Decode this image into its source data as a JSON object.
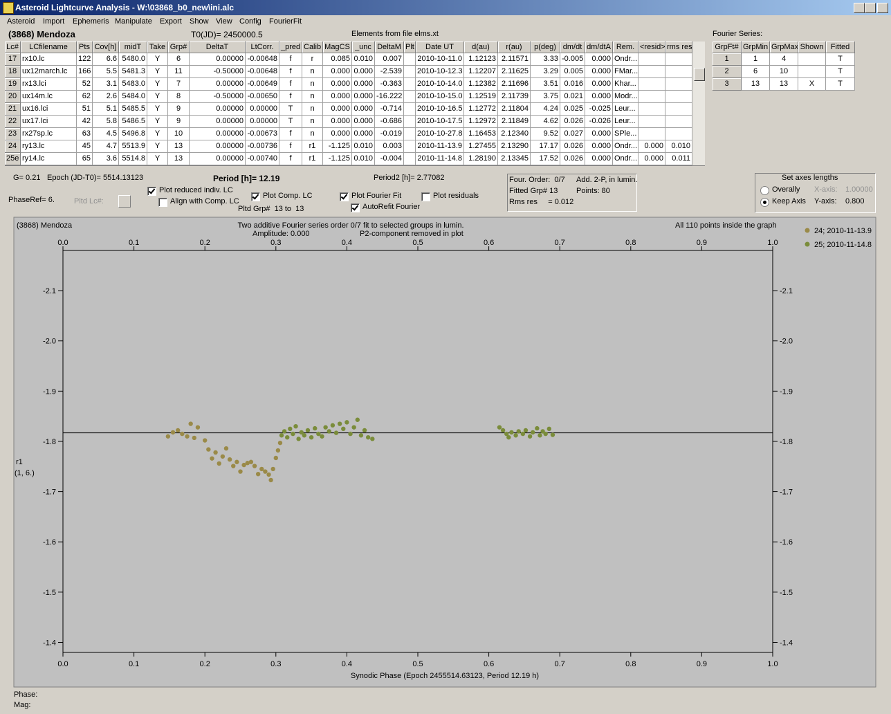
{
  "window": {
    "title": "Asteroid Lightcurve Analysis - W:\\03868_b0_new\\ini.alc",
    "menu": [
      "Asteroid",
      "Import",
      "Ephemeris",
      "Manipulate",
      "Export",
      "Show",
      "View",
      "Config",
      "FourierFit"
    ]
  },
  "header": {
    "object": "(3868) Mendoza",
    "t0": "T0(JD)= 2450000.5",
    "elements": "Elements from file elms.xt",
    "fourier_label": "Fourier Series:"
  },
  "lc_table": {
    "columns": [
      "Lc#",
      "LCfilename",
      "Pts",
      "Cov[h]",
      "midT",
      "Take",
      "Grp#",
      "DeltaT",
      "LtCorr.",
      "_pred",
      "Calib",
      "MagCS",
      "_unc",
      "DeltaM",
      "Plt",
      "Date UT",
      "d(au)",
      "r(au)",
      "p(deg)",
      "dm/dt",
      "dm/dtA",
      "Rem.",
      "<resid>",
      "rms res"
    ],
    "rows": [
      [
        "17",
        "rx10.lc",
        "122",
        "6.6",
        "5480.0",
        "Y",
        "6",
        "0.00000",
        "-0.00648",
        "f",
        "r",
        "0.085",
        "0.010",
        "0.007",
        null,
        "2010-10-11.0",
        "1.12123",
        "2.11571",
        "3.33",
        "-0.005",
        "0.000",
        "Ondr...",
        null,
        null
      ],
      [
        "18",
        "ux12march.lc",
        "166",
        "5.5",
        "5481.3",
        "Y",
        "11",
        "-0.50000",
        "-0.00648",
        "f",
        "n",
        "0.000",
        "0.000",
        "-2.539",
        null,
        "2010-10-12.3",
        "1.12207",
        "2.11625",
        "3.29",
        "0.005",
        "0.000",
        "FMar...",
        null,
        null
      ],
      [
        "19",
        "rx13.lci",
        "52",
        "3.1",
        "5483.0",
        "Y",
        "7",
        "0.00000",
        "-0.00649",
        "f",
        "n",
        "0.000",
        "0.000",
        "-0.363",
        null,
        "2010-10-14.0",
        "1.12382",
        "2.11696",
        "3.51",
        "0.016",
        "0.000",
        "Khar...",
        null,
        null
      ],
      [
        "20",
        "ux14m.lc",
        "62",
        "2.6",
        "5484.0",
        "Y",
        "8",
        "-0.50000",
        "-0.00650",
        "f",
        "n",
        "0.000",
        "0.000",
        "-16.222",
        null,
        "2010-10-15.0",
        "1.12519",
        "2.11739",
        "3.75",
        "0.021",
        "0.000",
        "Modr...",
        null,
        null
      ],
      [
        "21",
        "ux16.lci",
        "51",
        "5.1",
        "5485.5",
        "Y",
        "9",
        "0.00000",
        "0.00000",
        "T",
        "n",
        "0.000",
        "0.000",
        "-0.714",
        null,
        "2010-10-16.5",
        "1.12772",
        "2.11804",
        "4.24",
        "0.025",
        "-0.025",
        "Leur...",
        null,
        null
      ],
      [
        "22",
        "ux17.lci",
        "42",
        "5.8",
        "5486.5",
        "Y",
        "9",
        "0.00000",
        "0.00000",
        "T",
        "n",
        "0.000",
        "0.000",
        "-0.686",
        null,
        "2010-10-17.5",
        "1.12972",
        "2.11849",
        "4.62",
        "0.026",
        "-0.026",
        "Leur...",
        null,
        null
      ],
      [
        "23",
        "rx27sp.lc",
        "63",
        "4.5",
        "5496.8",
        "Y",
        "10",
        "0.00000",
        "-0.00673",
        "f",
        "n",
        "0.000",
        "0.000",
        "-0.019",
        null,
        "2010-10-27.8",
        "1.16453",
        "2.12340",
        "9.52",
        "0.027",
        "0.000",
        "SPle...",
        null,
        null
      ],
      [
        "24",
        "ry13.lc",
        "45",
        "4.7",
        "5513.9",
        "Y",
        "13",
        "0.00000",
        "-0.00736",
        "f",
        "r1",
        "-1.125",
        "0.010",
        "0.003",
        null,
        "2010-11-13.9",
        "1.27455",
        "2.13290",
        "17.17",
        "0.026",
        "0.000",
        "Ondr...",
        "0.000",
        "0.010"
      ],
      [
        "25e",
        "ry14.lc",
        "65",
        "3.6",
        "5514.8",
        "Y",
        "13",
        "0.00000",
        "-0.00740",
        "f",
        "r1",
        "-1.125",
        "0.010",
        "-0.004",
        null,
        "2010-11-14.8",
        "1.28190",
        "2.13345",
        "17.52",
        "0.026",
        "0.000",
        "Ondr...",
        "0.000",
        "0.011"
      ]
    ]
  },
  "fourier_table": {
    "columns": [
      "GrpFt#",
      "GrpMin",
      "GrpMax",
      "Shown",
      "Fitted"
    ],
    "rows": [
      [
        "1",
        "1",
        "4",
        null,
        "T"
      ],
      [
        "2",
        "6",
        "10",
        null,
        "T"
      ],
      [
        "3",
        "13",
        "13",
        "X",
        "T"
      ]
    ]
  },
  "panel": {
    "g": "G= 0.21",
    "epoch": "Epoch (JD-T0)= 5514.13123",
    "period": "Period [h]= 12.19",
    "period2": "Period2 [h]= 2.77082",
    "phase_ref": "PhaseRef= 6.",
    "pltd_lc": "Pltd Lc#:",
    "pltd_grp": "Pltd Grp#  13 to  13",
    "checkboxes": [
      {
        "label": "Plot reduced indiv. LC",
        "checked": true
      },
      {
        "label": "Align with Comp. LC",
        "checked": false
      },
      {
        "label": "Plot Comp. LC",
        "checked": true
      },
      {
        "label": "Plot Fourier Fit",
        "checked": true
      },
      {
        "label": "AutoRefit Fourier",
        "checked": true
      },
      {
        "label": "Plot residuals",
        "checked": false
      }
    ]
  },
  "info": {
    "order": "Four. Order:  0/7",
    "add": "Add. 2-P, in lumin.",
    "fitted": "Fitted Grp# 13",
    "points": "Points: 80",
    "rms": "Rms res     = 0.012"
  },
  "axes_box": {
    "title": "Set axes lengths",
    "radios": [
      {
        "label": "Overally",
        "selected": false
      },
      {
        "label": "Keep Axis",
        "selected": true
      }
    ],
    "x_label": "X-axis:",
    "x_value": "1.00000",
    "y_label": "Y-axis:",
    "y_value": "0.800"
  },
  "chart_data": {
    "type": "scatter",
    "title": "(3868) Mendoza",
    "annotations": [
      "Two additive Fourier series order 0/7 fit to selected groups in lumin.",
      "Amplitude: 0.000",
      "P2-component removed in plot",
      "All 110 points inside the graph"
    ],
    "xlabel": "Synodic Phase (Epoch 2455514.63123, Period 12.19 h)",
    "ylabel": "r1",
    "ylabel2": "(1, 6.)",
    "xlim": [
      0,
      1
    ],
    "xticks": [
      {
        "value": 0,
        "label": "0.0"
      },
      0.1,
      0.2,
      0.3,
      0.4,
      0.5,
      0.6,
      0.7,
      0.8,
      0.9,
      {
        "value": 1,
        "label": "1.0"
      }
    ],
    "ylim": [
      -1.38,
      -2.18
    ],
    "yticks": [
      -2.1,
      {
        "value": -2,
        "label": "-2.0"
      },
      -1.9,
      -1.8,
      -1.7,
      -1.6,
      -1.5,
      -1.4
    ],
    "fourier_fit": -1.817,
    "series": [
      {
        "name": "24; 2010-11-13.9",
        "color": "#9a8a48",
        "x": [
          0.148,
          0.155,
          0.162,
          0.168,
          0.175,
          0.18,
          0.185,
          0.19,
          0.2,
          0.205,
          0.21,
          0.215,
          0.22,
          0.225,
          0.23,
          0.235,
          0.24,
          0.245,
          0.25,
          0.255,
          0.26,
          0.265,
          0.27,
          0.275,
          0.28,
          0.285,
          0.29,
          0.293,
          0.296,
          0.3,
          0.303,
          0.306
        ],
        "values": [
          -1.81,
          -1.818,
          -1.822,
          -1.815,
          -1.81,
          -1.835,
          -1.807,
          -1.828,
          -1.802,
          -1.784,
          -1.766,
          -1.778,
          -1.756,
          -1.77,
          -1.786,
          -1.764,
          -1.751,
          -1.759,
          -1.74,
          -1.753,
          -1.757,
          -1.759,
          -1.751,
          -1.735,
          -1.745,
          -1.74,
          -1.734,
          -1.723,
          -1.745,
          -1.767,
          -1.782,
          -1.797
        ]
      },
      {
        "name": "25; 2010-11-14.8",
        "color": "#7a8c3a",
        "x": [
          0.308,
          0.312,
          0.316,
          0.32,
          0.324,
          0.328,
          0.332,
          0.336,
          0.34,
          0.345,
          0.35,
          0.355,
          0.36,
          0.365,
          0.37,
          0.375,
          0.38,
          0.385,
          0.39,
          0.395,
          0.4,
          0.405,
          0.41,
          0.415,
          0.42,
          0.425,
          0.43,
          0.436,
          0.615,
          0.62,
          0.625,
          0.628,
          0.632,
          0.638,
          0.642,
          0.648,
          0.652,
          0.658,
          0.662,
          0.668,
          0.672,
          0.676,
          0.68,
          0.685,
          0.69
        ],
        "values": [
          -1.812,
          -1.82,
          -1.808,
          -1.825,
          -1.815,
          -1.83,
          -1.805,
          -1.818,
          -1.812,
          -1.822,
          -1.808,
          -1.826,
          -1.815,
          -1.81,
          -1.828,
          -1.82,
          -1.832,
          -1.817,
          -1.835,
          -1.825,
          -1.838,
          -1.815,
          -1.828,
          -1.843,
          -1.812,
          -1.822,
          -1.808,
          -1.805,
          -1.828,
          -1.822,
          -1.815,
          -1.808,
          -1.818,
          -1.812,
          -1.82,
          -1.815,
          -1.822,
          -1.81,
          -1.818,
          -1.826,
          -1.812,
          -1.82,
          -1.815,
          -1.825,
          -1.813
        ]
      }
    ]
  },
  "status": {
    "phase": "Phase:",
    "mag": "Mag:"
  }
}
